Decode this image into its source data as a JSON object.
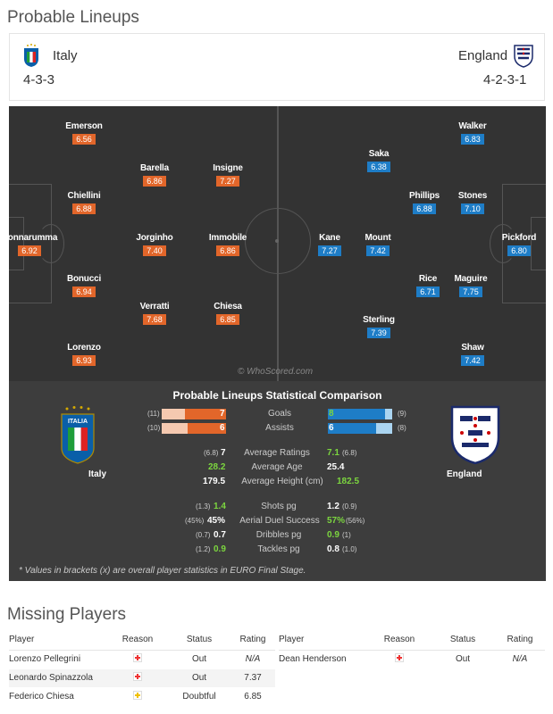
{
  "lineups_title": "Probable Lineups",
  "home": {
    "name": "Italy",
    "formation": "4-3-3"
  },
  "away": {
    "name": "England",
    "formation": "4-2-3-1"
  },
  "italy_players": [
    {
      "name": "Emerson",
      "rating": "6.56"
    },
    {
      "name": "Barella",
      "rating": "6.86"
    },
    {
      "name": "Insigne",
      "rating": "7.27"
    },
    {
      "name": "Chiellini",
      "rating": "6.88"
    },
    {
      "name": "Donnarumma",
      "rating": "6.92"
    },
    {
      "name": "Jorginho",
      "rating": "7.40"
    },
    {
      "name": "Immobile",
      "rating": "6.86"
    },
    {
      "name": "Bonucci",
      "rating": "6.94"
    },
    {
      "name": "Verratti",
      "rating": "7.68"
    },
    {
      "name": "Chiesa",
      "rating": "6.85"
    },
    {
      "name": "Lorenzo",
      "rating": "6.93"
    }
  ],
  "england_players": [
    {
      "name": "Walker",
      "rating": "6.83"
    },
    {
      "name": "Saka",
      "rating": "6.38"
    },
    {
      "name": "Phillips",
      "rating": "6.88"
    },
    {
      "name": "Stones",
      "rating": "7.10"
    },
    {
      "name": "Kane",
      "rating": "7.27"
    },
    {
      "name": "Mount",
      "rating": "7.42"
    },
    {
      "name": "Pickford",
      "rating": "6.80"
    },
    {
      "name": "Rice",
      "rating": "6.71"
    },
    {
      "name": "Maguire",
      "rating": "7.75"
    },
    {
      "name": "Sterling",
      "rating": "7.39"
    },
    {
      "name": "Shaw",
      "rating": "7.42"
    }
  ],
  "watermark": "© WhoScored.com",
  "comparison": {
    "title": "Probable Lineups Statistical Comparison",
    "home_label": "Italy",
    "away_label": "England",
    "bars": [
      {
        "label": "Goals",
        "home": "7",
        "home_bracket": "(11)",
        "away": "8",
        "away_bracket": "(9)",
        "home_frac": 0.64,
        "away_frac": 0.89
      },
      {
        "label": "Assists",
        "home": "6",
        "home_bracket": "(10)",
        "away": "6",
        "away_bracket": "(8)",
        "home_frac": 0.6,
        "away_frac": 0.75
      }
    ],
    "general": [
      {
        "label": "Average Ratings",
        "home": "7",
        "home_bracket": "(6.8)",
        "away": "7.1",
        "away_bracket": "(6.8)"
      },
      {
        "label": "Average Age",
        "home": "28.2",
        "home_bracket": "",
        "away": "25.4",
        "away_bracket": ""
      },
      {
        "label": "Average Height (cm)",
        "home": "179.5",
        "home_bracket": "",
        "away": "182.5",
        "away_bracket": ""
      }
    ],
    "detail": [
      {
        "label": "Shots pg",
        "home": "1.4",
        "home_bracket": "(1.3)",
        "away": "1.2",
        "away_bracket": "(0.9)"
      },
      {
        "label": "Aerial Duel Success",
        "home": "45%",
        "home_bracket": "(45%)",
        "away": "57%",
        "away_bracket": "(56%)"
      },
      {
        "label": "Dribbles pg",
        "home": "0.7",
        "home_bracket": "(0.7)",
        "away": "0.9",
        "away_bracket": "(1)"
      },
      {
        "label": "Tackles pg",
        "home": "0.9",
        "home_bracket": "(1.2)",
        "away": "0.8",
        "away_bracket": "(1.0)"
      }
    ],
    "note": "* Values in brackets (x) are overall player statistics in EURO Final Stage."
  },
  "missing_title": "Missing Players",
  "missing_headers": {
    "player": "Player",
    "reason": "Reason",
    "status": "Status",
    "rating": "Rating"
  },
  "missing_home": [
    {
      "player": "Lorenzo Pellegrini",
      "status": "Out",
      "rating": "N/A"
    },
    {
      "player": "Leonardo Spinazzola",
      "status": "Out",
      "rating": "7.37"
    },
    {
      "player": "Federico Chiesa",
      "status": "Doubtful",
      "rating": "6.85"
    }
  ],
  "missing_away": [
    {
      "player": "Dean Henderson",
      "status": "Out",
      "rating": "N/A"
    }
  ],
  "colors": {
    "italy": "#e2662a",
    "england": "#1e7dc7",
    "green": "#7cd63f"
  }
}
